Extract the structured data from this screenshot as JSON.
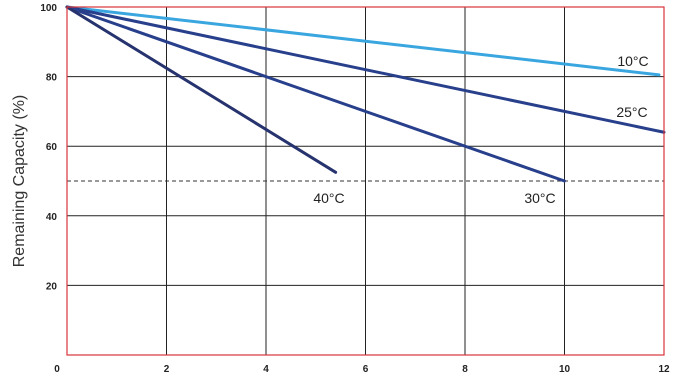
{
  "chart_data": {
    "type": "line",
    "ylabel": "Remaining Capacity (%)",
    "xlim": [
      0,
      12
    ],
    "ylim": [
      0,
      100
    ],
    "x_ticks": [
      "0",
      "2",
      "4",
      "6",
      "8",
      "10",
      "12"
    ],
    "y_ticks": [
      "0",
      "20",
      "40",
      "60",
      "80",
      "100"
    ],
    "grid": true,
    "reference_line": {
      "y": 50,
      "style": "dashed"
    },
    "series": [
      {
        "name": "10°C",
        "color": "#3aa6e0",
        "points": [
          [
            0,
            100
          ],
          [
            11.9,
            80.5
          ]
        ]
      },
      {
        "name": "25°C",
        "color": "#283f8c",
        "points": [
          [
            0,
            100
          ],
          [
            12,
            64
          ]
        ]
      },
      {
        "name": "30°C",
        "color": "#283f8c",
        "points": [
          [
            0,
            100
          ],
          [
            10,
            50
          ]
        ]
      },
      {
        "name": "40°C",
        "color": "#26336e",
        "points": [
          [
            0,
            100
          ],
          [
            5.4,
            52.5
          ]
        ]
      }
    ]
  }
}
